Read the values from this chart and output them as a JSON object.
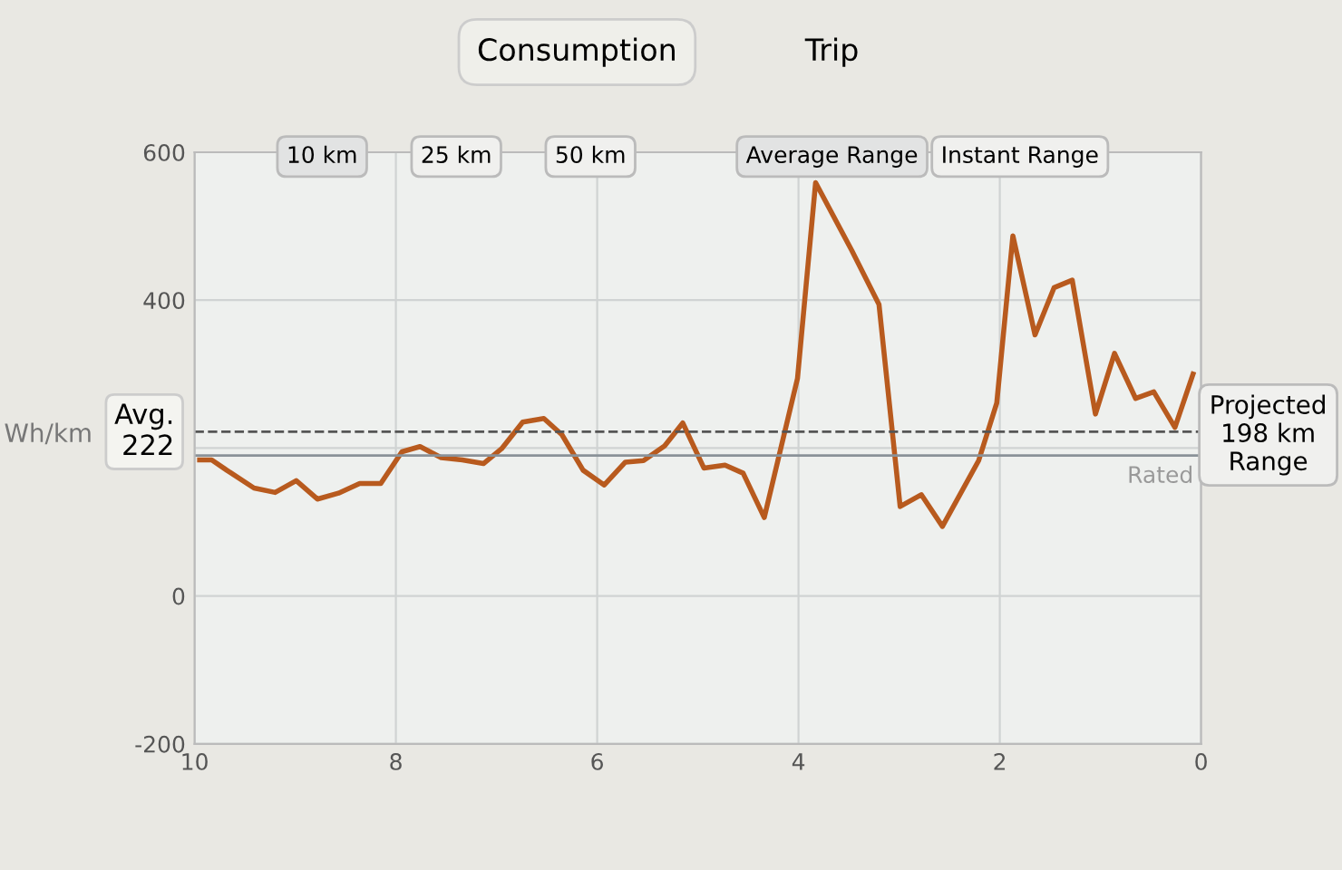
{
  "chart_data": {
    "type": "line",
    "title": "Consumption",
    "ylabel": "Wh/km",
    "annotations": [
      "Trip",
      "10 km",
      "25 km",
      "50 km",
      "Average Range",
      "Instant Range",
      "Projected\n198 km\nRange"
    ],
    "x": [
      9.95,
      9.83,
      9.68,
      9.41,
      9.2,
      8.99,
      8.78,
      8.57,
      8.36,
      8.15,
      7.94,
      7.76,
      7.55,
      7.34,
      7.13,
      6.95,
      6.74,
      6.53,
      6.35,
      6.14,
      5.93,
      5.72,
      5.54,
      5.33,
      5.15,
      4.94,
      4.73,
      4.55,
      4.34,
      4.01,
      3.83,
      3.47,
      3.2,
      2.99,
      2.78,
      2.57,
      2.21,
      2.03,
      1.87,
      1.65,
      1.46,
      1.28,
      1.05,
      0.86,
      0.65,
      0.47,
      0.26,
      0.08
    ],
    "series": [
      {
        "color": "#b85a1e",
        "values": [
          184,
          184,
          170,
          146,
          140,
          156,
          131,
          139,
          152,
          152,
          195,
          202,
          187,
          184,
          179,
          199,
          235,
          240,
          218,
          170,
          150,
          181,
          183,
          203,
          234,
          173,
          177,
          166,
          106,
          294,
          559,
          467,
          394,
          121,
          137,
          94,
          183,
          261,
          487,
          353,
          417,
          427,
          246,
          328,
          267,
          276,
          228,
          300
        ]
      }
    ],
    "xlim": [
      10,
      0
    ],
    "xticks": [
      10,
      8,
      6,
      4,
      2,
      0
    ],
    "ylim": [
      -200,
      600
    ],
    "yticks": [
      -200,
      0,
      {
        "value": 200,
        "label": null
      },
      400,
      600
    ],
    "ref_lines": [
      {
        "axis": "y",
        "value": 222,
        "label": "Avg.\n222",
        "line_style": "dashed",
        "color": "#555555"
      },
      {
        "axis": "y",
        "value": 190,
        "label": "Rated",
        "line_style": "solid",
        "color": "#8a9298"
      }
    ],
    "grid": true,
    "marker": "none",
    "line_style": "solid"
  }
}
